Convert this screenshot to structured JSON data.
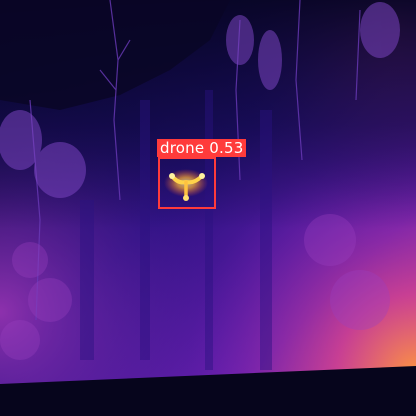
{
  "image": {
    "description_colors": {
      "background_dark": "#0b0838",
      "mid_purple": "#5a1ca8",
      "magenta": "#b02ab8",
      "hot_orange": "#ff8a2a",
      "hot_yellow": "#ffd23a"
    }
  },
  "detection": {
    "label": "drone 0.53",
    "box_color": "#ff3b3b"
  }
}
